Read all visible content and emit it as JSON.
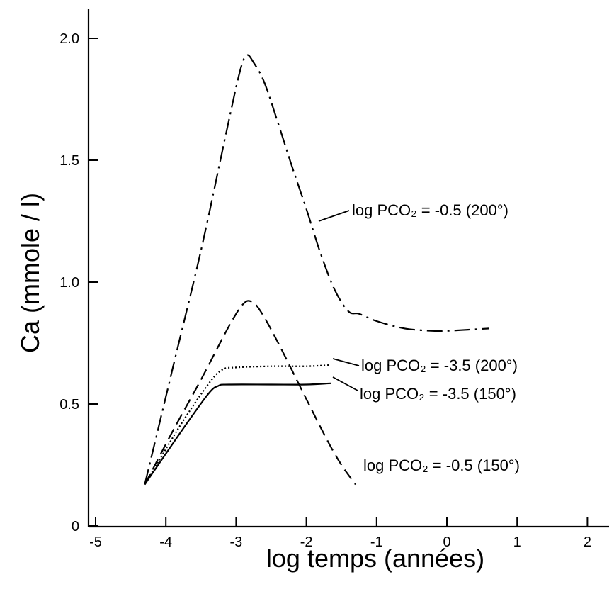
{
  "chart_data": {
    "type": "line",
    "xlabel": "log temps (années)",
    "ylabel": "Ca (mmole / l)",
    "xlim": [
      -5,
      2
    ],
    "ylim": [
      0,
      2.0
    ],
    "x_ticks": [
      -5,
      -4,
      -3,
      -2,
      -1,
      0,
      1,
      2
    ],
    "x_tick_labels": [
      "-5",
      "-4",
      "-3",
      "-2",
      "-1",
      "0",
      "1",
      "2"
    ],
    "y_ticks": [
      0,
      0.5,
      1.0,
      1.5,
      2.0
    ],
    "y_tick_labels": [
      "0",
      "0.5",
      "1.0",
      "1.5",
      "2.0"
    ],
    "grid": false,
    "series": [
      {
        "name": "log PCO2 = -0.5 (200°)",
        "style": "dash-dot",
        "color": "#000000",
        "x": [
          -4.3,
          -3.9,
          -3.5,
          -3.15,
          -2.95,
          -2.85,
          -2.75,
          -2.6,
          -2.4,
          -2.2,
          -2.0,
          -1.8,
          -1.6,
          -1.4,
          -1.25,
          -1.0,
          -0.6,
          -0.2,
          0.0,
          0.3,
          0.6
        ],
        "y": [
          0.17,
          0.65,
          1.13,
          1.6,
          1.86,
          1.93,
          1.9,
          1.82,
          1.65,
          1.47,
          1.3,
          1.12,
          0.97,
          0.88,
          0.87,
          0.84,
          0.81,
          0.8,
          0.8,
          0.805,
          0.81
        ]
      },
      {
        "name": "log PCO2 = -0.5 (150°)",
        "style": "dashed",
        "color": "#000000",
        "x": [
          -4.3,
          -3.9,
          -3.5,
          -3.1,
          -2.9,
          -2.78,
          -2.65,
          -2.4,
          -2.0,
          -1.7,
          -1.5,
          -1.3
        ],
        "y": [
          0.17,
          0.39,
          0.6,
          0.82,
          0.91,
          0.92,
          0.88,
          0.75,
          0.52,
          0.35,
          0.25,
          0.17
        ]
      },
      {
        "name": "log PCO2 = -3.5 (200°)",
        "style": "dotted",
        "color": "#000000",
        "x": [
          -4.3,
          -3.8,
          -3.4,
          -3.2,
          -3.0,
          -2.5,
          -2.0,
          -1.65
        ],
        "y": [
          0.17,
          0.41,
          0.58,
          0.64,
          0.65,
          0.655,
          0.655,
          0.66
        ]
      },
      {
        "name": "log PCO2 = -3.5 (150°)",
        "style": "solid",
        "color": "#000000",
        "x": [
          -4.3,
          -3.8,
          -3.4,
          -3.25,
          -3.1,
          -2.5,
          -2.0,
          -1.65
        ],
        "y": [
          0.17,
          0.38,
          0.54,
          0.575,
          0.58,
          0.58,
          0.58,
          0.585
        ]
      }
    ],
    "annotations": [
      {
        "text": "log PCO₂ = -0.5 (200°)",
        "series": 0
      },
      {
        "text": "log PCO₂ = -3.5 (200°)",
        "series": 2
      },
      {
        "text": "log PCO₂ = -3.5 (150°)",
        "series": 3
      },
      {
        "text": "log PCO₂ = -0.5 (150°)",
        "series": 1
      }
    ]
  }
}
